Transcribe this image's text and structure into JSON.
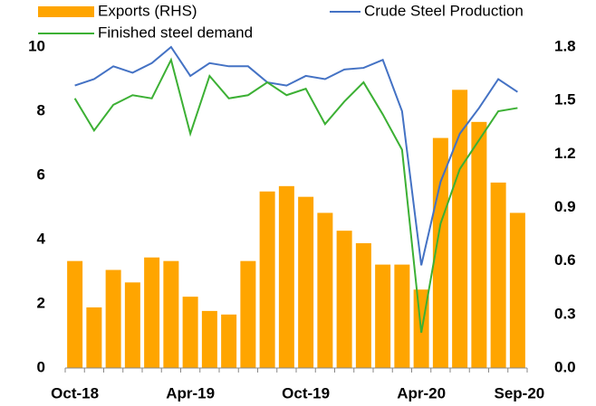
{
  "chart_data": {
    "type": "bar-line",
    "categories": [
      "Oct-18",
      null,
      null,
      null,
      null,
      null,
      "Apr-19",
      null,
      null,
      null,
      null,
      null,
      "Oct-19",
      null,
      null,
      null,
      null,
      null,
      "Apr-20",
      null,
      null,
      null,
      null,
      "Sep-20"
    ],
    "series": [
      {
        "name": "Exports (RHS)",
        "type": "bar",
        "axis": "y2",
        "color": "#ffa500",
        "values": [
          0.6,
          0.34,
          0.55,
          0.48,
          0.62,
          0.6,
          0.4,
          0.32,
          0.3,
          0.6,
          0.99,
          1.02,
          0.96,
          0.87,
          0.77,
          0.7,
          0.58,
          0.58,
          0.44,
          1.29,
          1.56,
          1.38,
          1.04,
          0.87
        ]
      },
      {
        "name": "Crude Steel Production",
        "type": "line",
        "axis": "y",
        "color": "#4472c4",
        "values": [
          8.8,
          9.0,
          9.4,
          9.2,
          9.5,
          10.0,
          9.1,
          9.5,
          9.4,
          9.4,
          8.9,
          8.8,
          9.1,
          9.0,
          9.3,
          9.35,
          9.6,
          8.0,
          3.2,
          5.8,
          7.3,
          8.1,
          9.0,
          8.6
        ]
      },
      {
        "name": "Finished steel demand",
        "type": "line",
        "axis": "y",
        "color": "#3cb034",
        "values": [
          8.4,
          7.4,
          8.2,
          8.5,
          8.4,
          9.6,
          7.3,
          9.1,
          8.4,
          8.5,
          8.9,
          8.5,
          8.7,
          7.6,
          8.3,
          8.9,
          7.9,
          6.8,
          1.1,
          4.5,
          6.2,
          7.1,
          8.0,
          8.1
        ]
      }
    ],
    "ylim": [
      0,
      10
    ],
    "yticks": [
      0,
      2,
      4,
      6,
      8,
      10
    ],
    "y2lim": [
      0,
      1.8
    ],
    "y2ticks": [
      {
        "value": 0,
        "label": "0.0"
      },
      {
        "value": 0.3,
        "label": "0.3"
      },
      {
        "value": 0.6,
        "label": "0.6"
      },
      {
        "value": 0.9,
        "label": "0.9"
      },
      {
        "value": 1.2,
        "label": "1.2"
      },
      {
        "value": 1.5,
        "label": "1.5"
      },
      {
        "value": 1.8,
        "label": "1.8"
      }
    ]
  }
}
